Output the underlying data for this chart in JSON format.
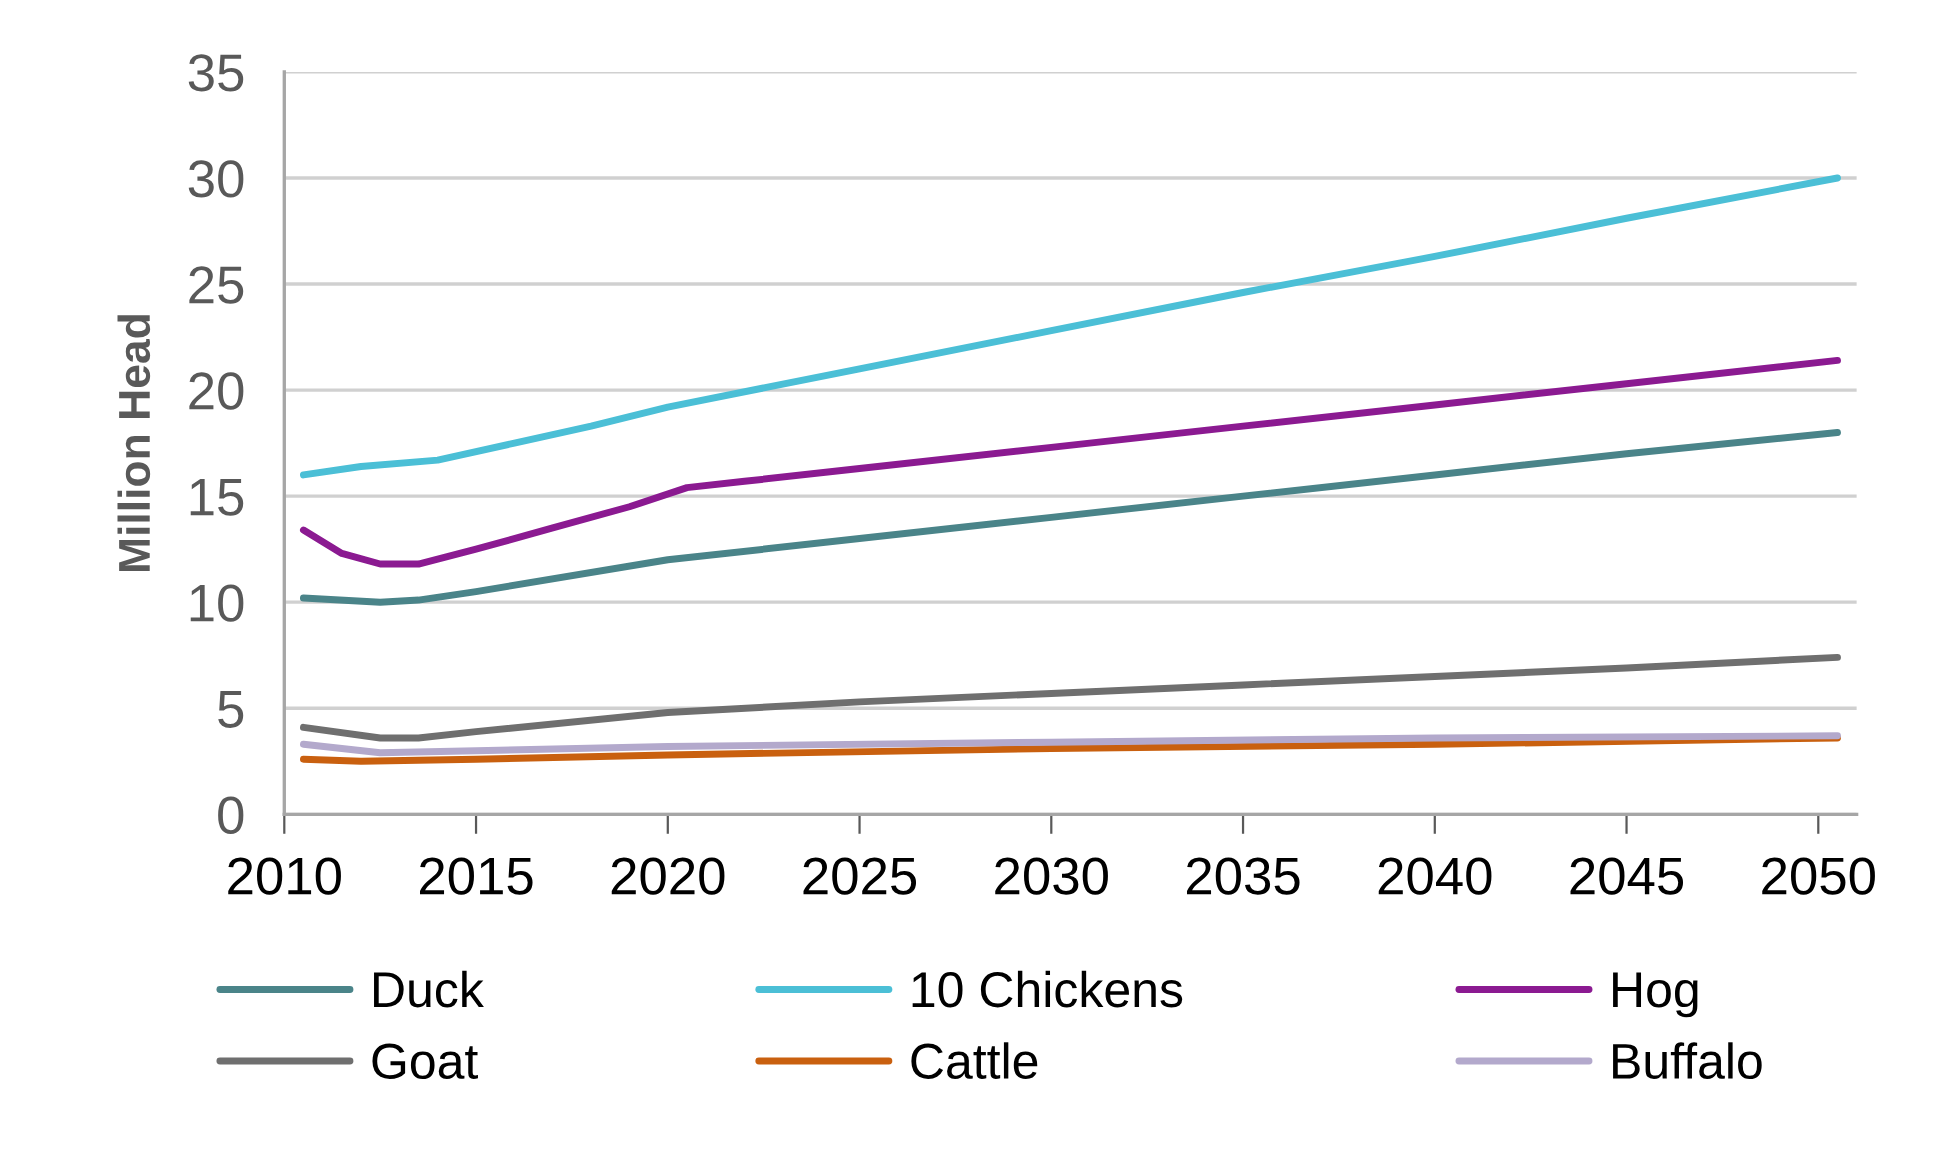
{
  "chart_data": {
    "type": "line",
    "ylabel": "Million Head",
    "xlim": [
      2010,
      2051
    ],
    "xticks": [
      2010,
      2015,
      2020,
      2025,
      2030,
      2035,
      2040,
      2045,
      2050
    ],
    "ylim": [
      0,
      35
    ],
    "yticks": [
      0,
      5,
      10,
      15,
      20,
      25,
      30,
      35
    ],
    "grid": "y",
    "legend": "bottom",
    "line_style": "solid",
    "series": [
      {
        "name": "Duck",
        "color": "#4a8489",
        "x": [
          2010.5,
          2012.5,
          2013.5,
          2015,
          2020,
          2025,
          2030,
          2035,
          2040,
          2045,
          2050.5
        ],
        "values": [
          10.2,
          10.0,
          10.1,
          10.5,
          12.0,
          13.0,
          14.0,
          15.0,
          16.0,
          17.0,
          18.0
        ]
      },
      {
        "name": "10 Chickens",
        "color": "#4bbfd6",
        "x": [
          2010.5,
          2012,
          2014,
          2016,
          2018,
          2020,
          2025,
          2030,
          2035,
          2040,
          2045,
          2050.5
        ],
        "values": [
          16.0,
          16.4,
          16.7,
          17.5,
          18.3,
          19.2,
          21.0,
          22.8,
          24.6,
          26.3,
          28.1,
          30.0
        ]
      },
      {
        "name": "Hog",
        "color": "#8b1a91",
        "x": [
          2010.5,
          2011.5,
          2012.5,
          2013.5,
          2015,
          2017,
          2019,
          2020.5,
          2022,
          2025,
          2030,
          2035,
          2040,
          2045,
          2050.5
        ],
        "values": [
          13.4,
          12.3,
          11.8,
          11.8,
          12.5,
          13.5,
          14.5,
          15.4,
          15.7,
          16.3,
          17.3,
          18.3,
          19.3,
          20.3,
          21.4
        ]
      },
      {
        "name": "Goat",
        "color": "#6f6f6f",
        "x": [
          2010.5,
          2012.5,
          2013.5,
          2015,
          2020,
          2025,
          2030,
          2035,
          2040,
          2045,
          2050.5
        ],
        "values": [
          4.1,
          3.6,
          3.6,
          3.9,
          4.8,
          5.3,
          5.7,
          6.1,
          6.5,
          6.9,
          7.4
        ]
      },
      {
        "name": "Cattle",
        "color": "#c9600f",
        "x": [
          2010.5,
          2012,
          2015,
          2020,
          2030,
          2040,
          2050.5
        ],
        "values": [
          2.6,
          2.5,
          2.6,
          2.8,
          3.1,
          3.3,
          3.6
        ]
      },
      {
        "name": "Buffalo",
        "color": "#b3a9cc",
        "x": [
          2010.5,
          2012.5,
          2015,
          2020,
          2030,
          2040,
          2050.5
        ],
        "values": [
          3.3,
          2.9,
          3.0,
          3.2,
          3.4,
          3.6,
          3.7
        ]
      }
    ]
  }
}
